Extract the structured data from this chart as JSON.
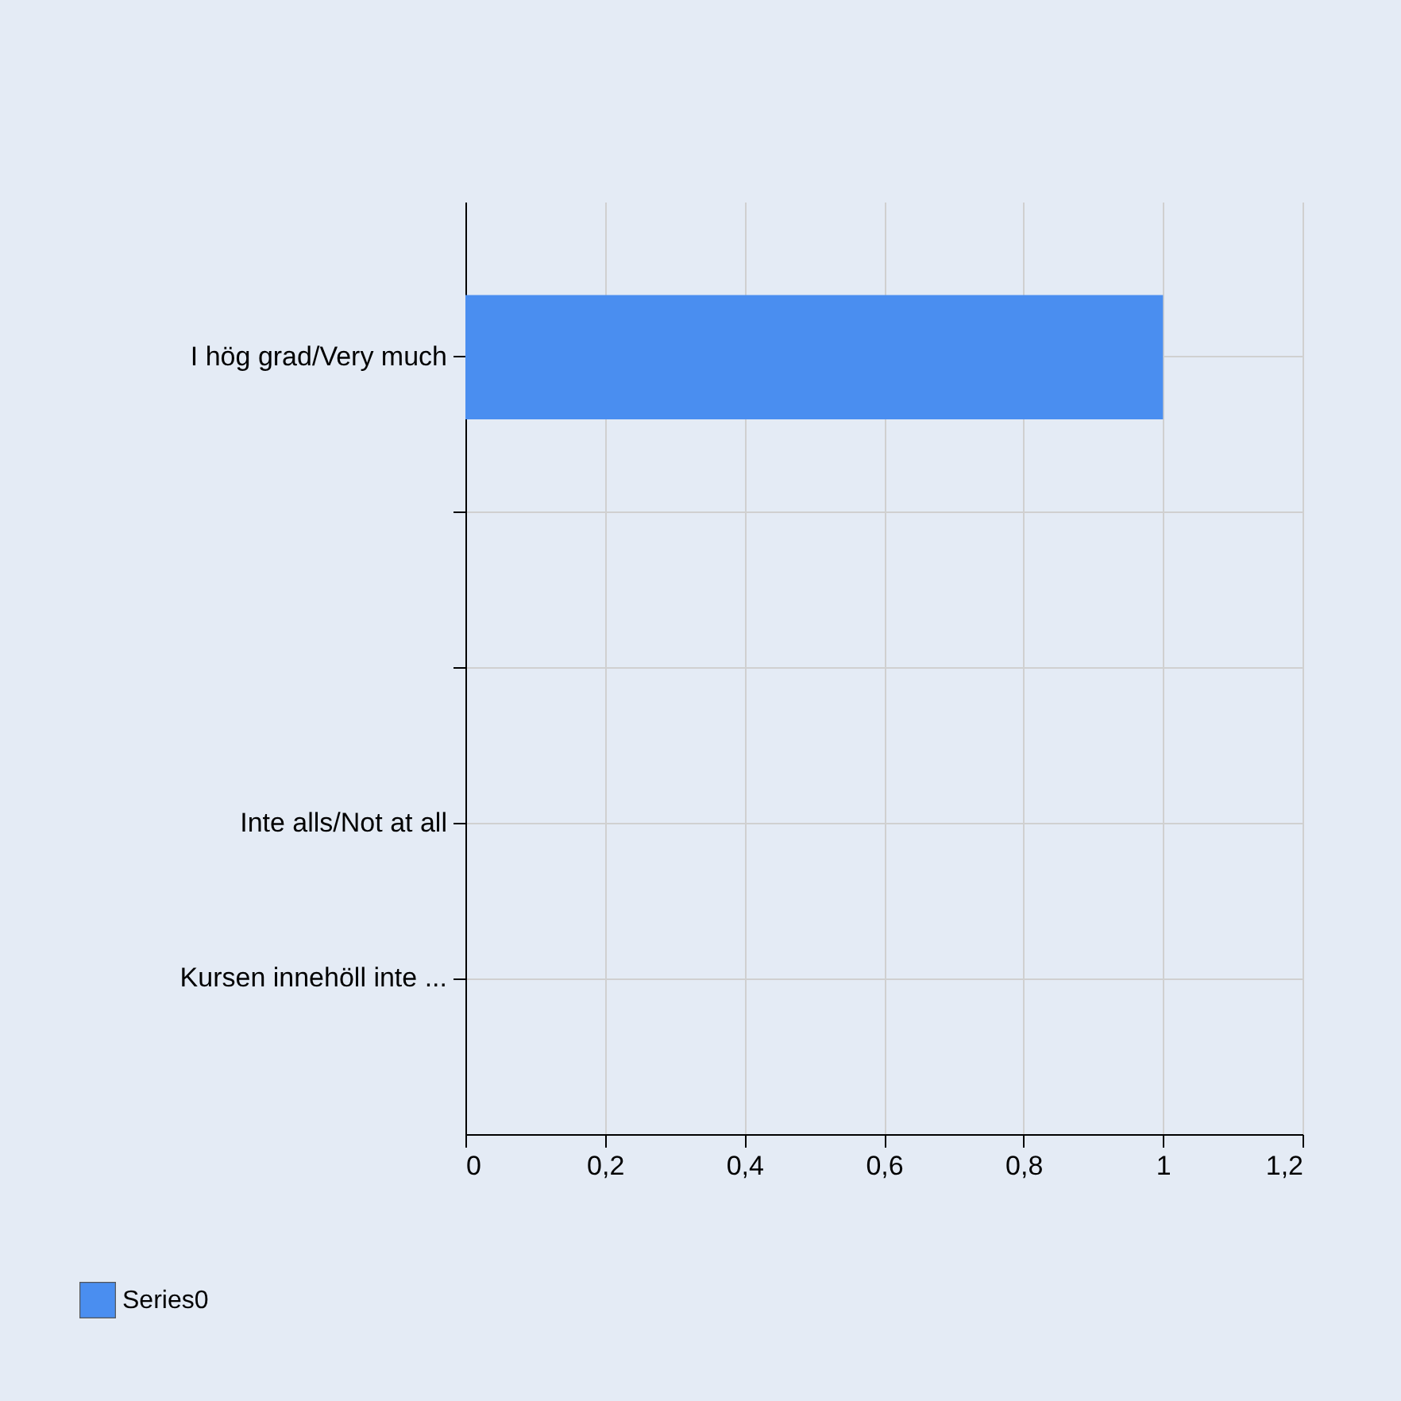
{
  "chart_data": {
    "type": "bar",
    "orientation": "horizontal",
    "categories": [
      "I hög grad/Very much",
      null,
      null,
      "Inte alls/Not at all",
      "Kursen innehöll inte ..."
    ],
    "series": [
      {
        "name": "Series0",
        "color": "#4a8ef0",
        "values": [
          1,
          0,
          0,
          0,
          0
        ]
      }
    ],
    "xlim": [
      0,
      1.2
    ],
    "xticks": [
      0,
      {
        "value": 0.2,
        "label": "0,2"
      },
      {
        "value": 0.4,
        "label": "0,4"
      },
      {
        "value": 0.6,
        "label": "0,6"
      },
      {
        "value": 0.8,
        "label": "0,8"
      },
      1,
      {
        "value": 1.2,
        "label": "1,2"
      }
    ],
    "grid": true,
    "legend": "bottom left"
  }
}
